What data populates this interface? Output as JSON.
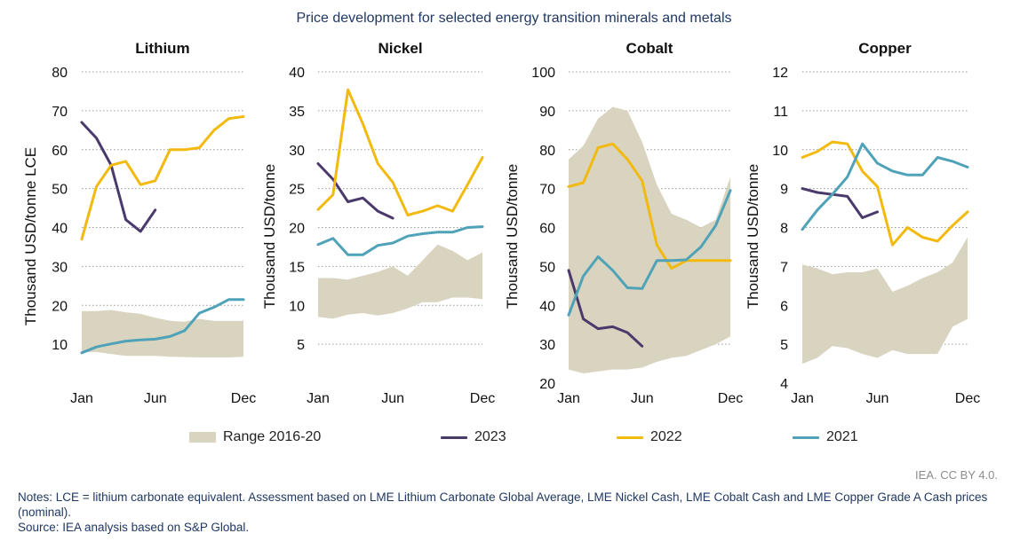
{
  "title": "Price development for selected energy transition minerals and metals",
  "legend": {
    "range": "Range 2016-20",
    "s2023": "2023",
    "s2022": "2022",
    "s2021": "2021"
  },
  "colors": {
    "range": "#d9d4c0",
    "s2023": "#4a3a6b",
    "s2022": "#f2b90f",
    "s2021": "#4fa2b8",
    "grid": "#9a9a9a",
    "text": "#1f3864"
  },
  "credit": "IEA. CC BY 4.0.",
  "notes": [
    "Notes: LCE = lithium carbonate equivalent. Assessment based on LME Lithium Carbonate Global Average, LME Nickel Cash, LME Cobalt Cash and LME Copper Grade A Cash prices (nominal).",
    "Source: IEA analysis based on S&P Global."
  ],
  "chart_data": [
    {
      "type": "line",
      "title": "Lithium",
      "ylabel": "Thousand USD/tonne LCE",
      "ylim": [
        0,
        80
      ],
      "yticks": [
        10,
        20,
        30,
        40,
        50,
        60,
        70,
        80
      ],
      "xticklabels": [
        "Jan",
        "Jun",
        "Dec"
      ],
      "x": [
        "Jan",
        "Feb",
        "Mar",
        "Apr",
        "May",
        "Jun",
        "Jul",
        "Aug",
        "Sep",
        "Oct",
        "Nov",
        "Dec"
      ],
      "grid": true,
      "range": {
        "name": "Range 2016-20",
        "low": [
          8,
          8,
          7.5,
          7,
          7,
          7,
          6.8,
          6.7,
          6.6,
          6.6,
          6.6,
          6.8
        ],
        "high": [
          18.5,
          18.5,
          18.8,
          18.2,
          17.8,
          16.8,
          16,
          15.8,
          16.5,
          16,
          16,
          16
        ]
      },
      "series": [
        {
          "name": "2023",
          "values": [
            67,
            63,
            56,
            42,
            39,
            44.5,
            null,
            null,
            null,
            null,
            null,
            null
          ]
        },
        {
          "name": "2022",
          "values": [
            37,
            50.5,
            56,
            57,
            51,
            52,
            60,
            60,
            60.5,
            65,
            68,
            68.5
          ]
        },
        {
          "name": "2021",
          "values": [
            7.8,
            9.3,
            10.1,
            10.8,
            11.1,
            11.3,
            12,
            13.5,
            18,
            19.5,
            21.5,
            21.5
          ]
        }
      ]
    },
    {
      "type": "line",
      "title": "Nickel",
      "ylabel": "Thousand USD/tonne",
      "ylim": [
        0,
        40
      ],
      "yticks": [
        5,
        10,
        15,
        20,
        25,
        30,
        35,
        40
      ],
      "xticklabels": [
        "Jan",
        "Jun",
        "Dec"
      ],
      "x": [
        "Jan",
        "Feb",
        "Mar",
        "Apr",
        "May",
        "Jun",
        "Jul",
        "Aug",
        "Sep",
        "Oct",
        "Nov",
        "Dec"
      ],
      "grid": true,
      "range": {
        "name": "Range 2016-20",
        "low": [
          8.5,
          8.3,
          8.8,
          9,
          8.7,
          9,
          9.6,
          10.4,
          10.4,
          11,
          11,
          10.8
        ],
        "high": [
          13.5,
          13.5,
          13.3,
          13.8,
          14.3,
          15,
          13.8,
          15.8,
          17.8,
          17,
          15.8,
          16.8
        ]
      },
      "series": [
        {
          "name": "2023",
          "values": [
            28.2,
            26.2,
            23.3,
            23.8,
            22.1,
            21.2,
            null,
            null,
            null,
            null,
            null,
            null
          ]
        },
        {
          "name": "2022",
          "values": [
            22.3,
            24.2,
            37.7,
            33.3,
            28.2,
            25.8,
            21.6,
            22.1,
            22.8,
            22.1,
            25.5,
            29
          ]
        },
        {
          "name": "2021",
          "values": [
            17.8,
            18.6,
            16.5,
            16.5,
            17.7,
            18,
            18.9,
            19.2,
            19.4,
            19.4,
            20,
            20.1
          ]
        }
      ]
    },
    {
      "type": "line",
      "title": "Cobalt",
      "ylabel": "Thousand USD/tonne",
      "ylim": [
        20,
        100
      ],
      "yticks": [
        20,
        30,
        40,
        50,
        60,
        70,
        80,
        90,
        100
      ],
      "xticklabels": [
        "Jan",
        "Jun",
        "Dec"
      ],
      "x": [
        "Jan",
        "Feb",
        "Mar",
        "Apr",
        "May",
        "Jun",
        "Jul",
        "Aug",
        "Sep",
        "Oct",
        "Nov",
        "Dec"
      ],
      "grid": true,
      "range": {
        "name": "Range 2016-20",
        "low": [
          23.5,
          22.5,
          23,
          23.5,
          23.5,
          24,
          25.5,
          26.5,
          27,
          28.5,
          30,
          32
        ],
        "high": [
          77.5,
          81,
          88,
          91,
          90,
          82,
          71,
          63.5,
          62,
          60,
          62,
          73
        ]
      },
      "series": [
        {
          "name": "2023",
          "values": [
            49,
            36.5,
            34,
            34.5,
            33,
            29.5,
            null,
            null,
            null,
            null,
            null,
            null
          ]
        },
        {
          "name": "2022",
          "values": [
            70.5,
            71.5,
            80.5,
            81.5,
            77.5,
            72,
            55.5,
            49.5,
            51.5,
            51.5,
            51.5,
            51.5
          ]
        },
        {
          "name": "2021",
          "values": [
            37.5,
            47.5,
            52.5,
            49,
            44.5,
            44.3,
            51.5,
            51.5,
            51.7,
            55,
            60.5,
            69.5
          ]
        }
      ]
    },
    {
      "type": "line",
      "title": "Copper",
      "ylabel": "Thousand USD/tonne",
      "ylim": [
        4,
        12
      ],
      "yticks": [
        4,
        5,
        6,
        7,
        8,
        9,
        10,
        11,
        12
      ],
      "xticklabels": [
        "Jan",
        "Jun",
        "Dec"
      ],
      "x": [
        "Jan",
        "Feb",
        "Mar",
        "Apr",
        "May",
        "Jun",
        "Jul",
        "Aug",
        "Sep",
        "Oct",
        "Nov",
        "Dec"
      ],
      "grid": true,
      "range": {
        "name": "Range 2016-20",
        "low": [
          4.5,
          4.65,
          4.95,
          4.9,
          4.75,
          4.65,
          4.85,
          4.75,
          4.75,
          4.75,
          5.45,
          5.65
        ],
        "high": [
          7.05,
          6.95,
          6.8,
          6.85,
          6.85,
          6.95,
          6.35,
          6.5,
          6.7,
          6.85,
          7.1,
          7.75
        ]
      },
      "series": [
        {
          "name": "2023",
          "values": [
            9,
            8.9,
            8.85,
            8.8,
            8.25,
            8.4,
            null,
            null,
            null,
            null,
            null,
            null
          ]
        },
        {
          "name": "2022",
          "values": [
            9.8,
            9.95,
            10.2,
            10.15,
            9.45,
            9.05,
            7.55,
            8,
            7.75,
            7.65,
            8.05,
            8.4
          ]
        },
        {
          "name": "2021",
          "values": [
            7.95,
            8.45,
            8.85,
            9.3,
            10.15,
            9.65,
            9.45,
            9.35,
            9.35,
            9.8,
            9.7,
            9.55
          ]
        }
      ]
    }
  ]
}
